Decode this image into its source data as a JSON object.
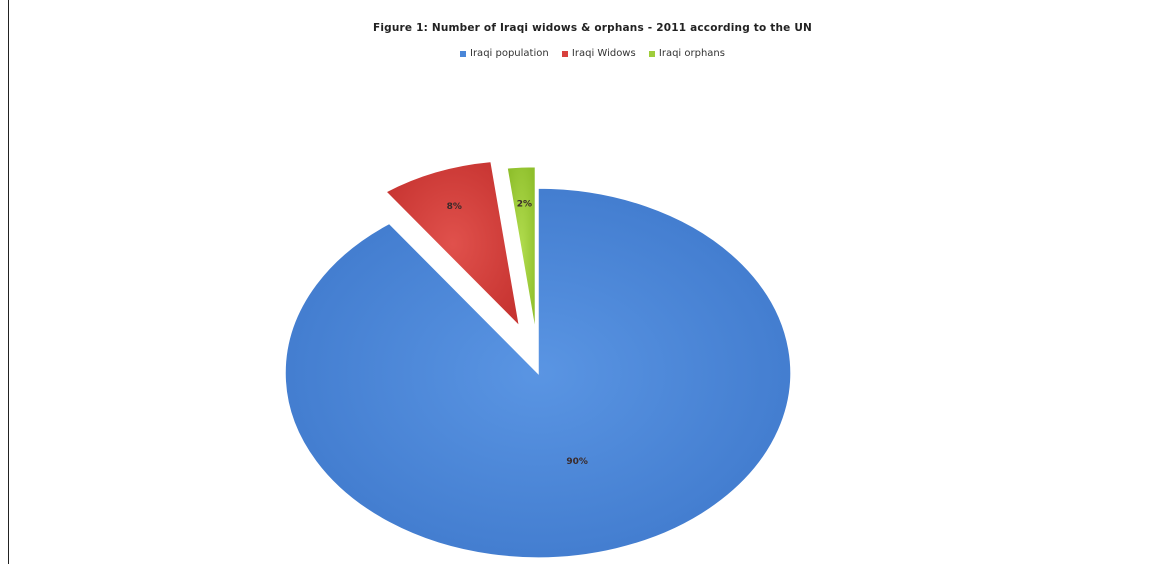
{
  "chart_data": {
    "type": "pie",
    "title": "Figure 1: Number of Iraqi widows & orphans - 2011 according to the UN",
    "legend_position": "top",
    "categories": [
      "Iraqi population",
      "Iraqi Widows",
      "Iraqi orphans"
    ],
    "values": [
      90,
      8,
      2
    ],
    "data_labels": [
      "90%",
      "8%",
      "2%"
    ],
    "colors": [
      "#4a86d8",
      "#d8413d",
      "#9fcd3b"
    ],
    "exploded": [
      false,
      true,
      true
    ],
    "start_angle_deg": 0,
    "direction": "clockwise"
  }
}
